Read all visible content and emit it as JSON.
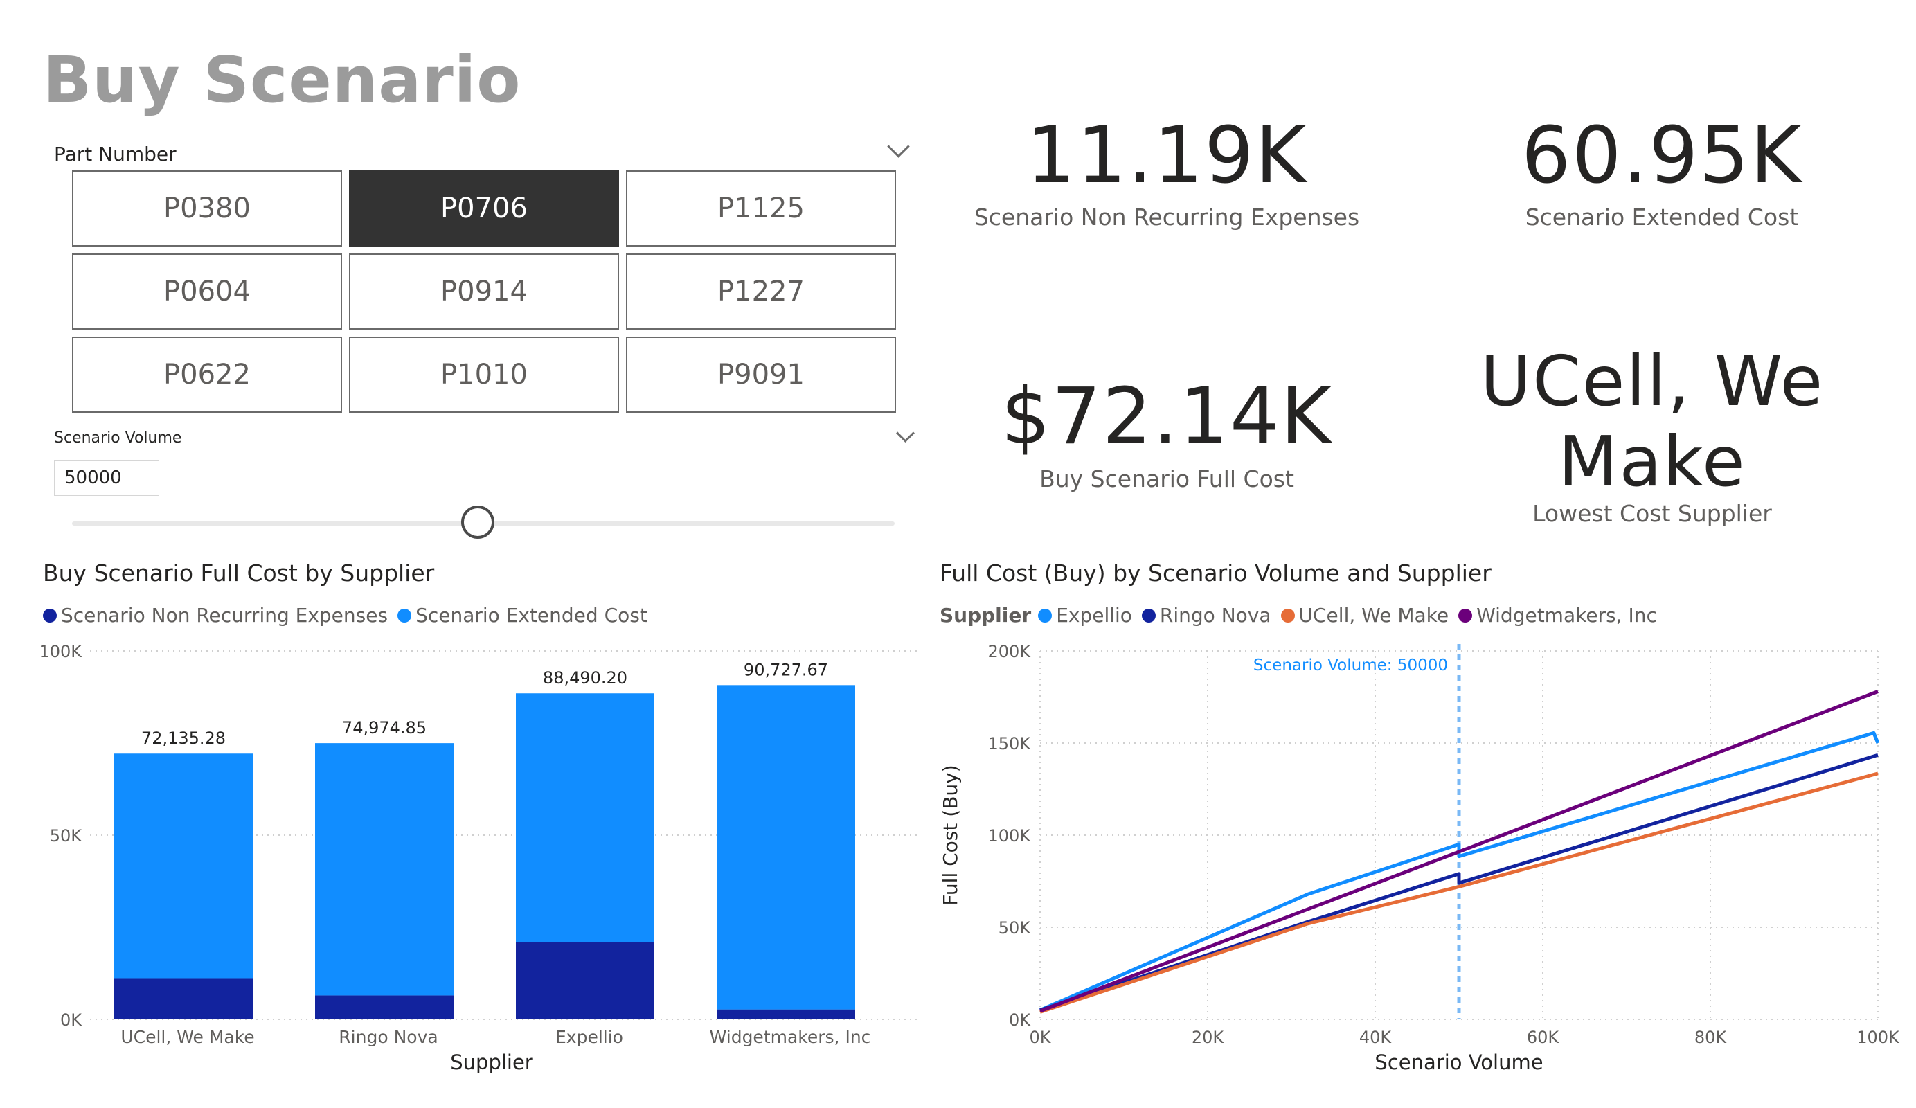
{
  "title": "Buy Scenario",
  "part_slicer": {
    "label": "Part Number",
    "options": [
      "P0380",
      "P0706",
      "P1125",
      "P0604",
      "P0914",
      "P1227",
      "P0622",
      "P1010",
      "P9091"
    ],
    "selected": "P0706"
  },
  "volume_slicer": {
    "label": "Scenario Volume",
    "value": "50000",
    "slider_fraction": 0.5
  },
  "kpis": {
    "nre_value": "11.19K",
    "nre_label": "Scenario Non Recurring Expenses",
    "ext_value": "60.95K",
    "ext_label": "Scenario Extended Cost",
    "full_value": "$72.14K",
    "full_label": "Buy Scenario Full Cost",
    "lowest_value_line1": "UCell, We",
    "lowest_value_line2": "Make",
    "lowest_label": "Lowest Cost Supplier"
  },
  "colors": {
    "nre": "#12239E",
    "extended": "#118DFF",
    "expellio": "#118DFF",
    "ringo": "#12239E",
    "ucell": "#E66C37",
    "widget": "#6B007B",
    "refline": "#79B8F5"
  },
  "chart_data": [
    {
      "type": "bar",
      "stacked": true,
      "title": "Buy Scenario Full Cost by Supplier",
      "xlabel": "Supplier",
      "ylabel": "",
      "categories": [
        "UCell, We Make",
        "Ringo Nova",
        "Expellio",
        "Widgetmakers, Inc"
      ],
      "series": [
        {
          "name": "Scenario Non Recurring Expenses",
          "values": [
            11190,
            6500,
            20900,
            2700
          ]
        },
        {
          "name": "Scenario Extended Cost",
          "values": [
            60945,
            68475,
            67590,
            88028
          ]
        }
      ],
      "totals": [
        72135.28,
        74974.85,
        88490.2,
        90727.67
      ],
      "total_labels": [
        "72,135.28",
        "74,974.85",
        "88,490.20",
        "90,727.67"
      ],
      "ylim": [
        0,
        100000
      ],
      "yticks": [
        "0K",
        "50K",
        "100K"
      ],
      "legend": "top-left",
      "grid": true
    },
    {
      "type": "line",
      "title": "Full Cost (Buy) by Scenario Volume and Supplier",
      "xlabel": "Scenario Volume",
      "ylabel": "Full Cost (Buy)",
      "legend_title": "Supplier",
      "xlim": [
        0,
        100000
      ],
      "ylim": [
        0,
        200000
      ],
      "xticks": [
        "0K",
        "20K",
        "40K",
        "60K",
        "80K",
        "100K"
      ],
      "yticks": [
        "0K",
        "50K",
        "100K",
        "150K",
        "200K"
      ],
      "reference_line": {
        "x": 50000,
        "label": "Scenario Volume: 50000"
      },
      "series": [
        {
          "name": "Expellio",
          "x": [
            0,
            32000,
            49999,
            50000,
            99500,
            100000
          ],
          "y": [
            5000,
            68000,
            95000,
            88500,
            155500,
            150000
          ]
        },
        {
          "name": "Ringo Nova",
          "x": [
            0,
            32000,
            49999,
            50000,
            100000
          ],
          "y": [
            5000,
            53000,
            79000,
            74000,
            143500
          ]
        },
        {
          "name": "UCell, We Make",
          "x": [
            0,
            32000,
            50000,
            100000
          ],
          "y": [
            4000,
            52000,
            72000,
            133500
          ]
        },
        {
          "name": "Widgetmakers, Inc",
          "x": [
            0,
            50000,
            100000
          ],
          "y": [
            4500,
            91000,
            178000
          ]
        }
      ],
      "legend": "top-left",
      "grid": true
    }
  ]
}
